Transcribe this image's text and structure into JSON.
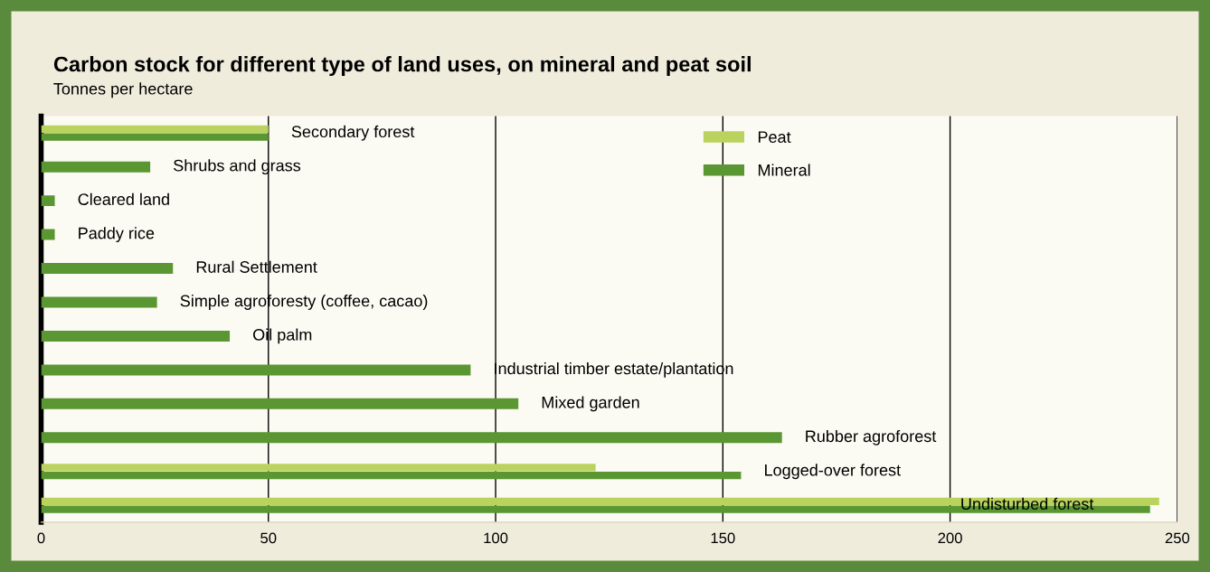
{
  "chart_data": {
    "type": "bar",
    "orientation": "horizontal",
    "title": "Carbon stock for different type of land uses, on mineral and peat soil",
    "subtitle": "Tonnes per hectare",
    "categories": [
      "Secondary forest",
      "Shrubs and grass",
      "Cleared land",
      "Paddy rice",
      "Rural Settlement",
      "Simple agroforesty (coffee, cacao)",
      "Oil palm",
      "Industrial timber estate/plantation",
      "Mixed garden",
      "Rubber agroforest",
      "Logged-over forest",
      "Undisturbed forest"
    ],
    "series": [
      {
        "name": "Peat",
        "color": "#bad25e",
        "values": [
          50,
          null,
          null,
          null,
          null,
          null,
          null,
          null,
          null,
          null,
          122,
          246
        ]
      },
      {
        "name": "Mineral",
        "color": "#5a9632",
        "values": [
          50,
          24,
          3,
          3,
          29,
          25.5,
          41.5,
          94.5,
          105,
          163,
          154,
          244
        ]
      }
    ],
    "xlim": [
      0,
      250
    ],
    "xticks": [
      0,
      50,
      100,
      150,
      200,
      250
    ],
    "grid": "x",
    "legend": "top",
    "tick_labels": "x"
  }
}
